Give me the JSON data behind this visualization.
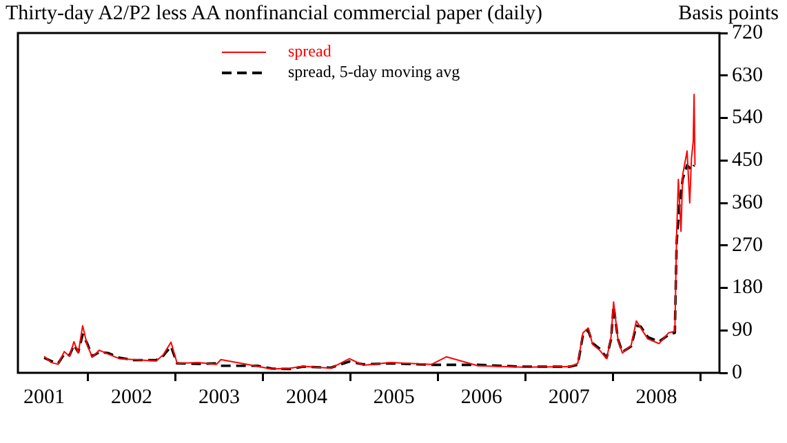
{
  "chart_data": {
    "type": "line",
    "title": "Thirty-day A2/P2 less AA nonfinancial commercial paper (daily)",
    "ylabel": "Basis points",
    "xlim": [
      2001.2,
      2009.22
    ],
    "xticks": [
      {
        "value": 2001.5,
        "label": "2001"
      },
      {
        "value": 2002,
        "label": null
      },
      {
        "value": 2002.5,
        "label": "2002"
      },
      {
        "value": 2003,
        "label": null
      },
      {
        "value": 2003.5,
        "label": "2003"
      },
      {
        "value": 2004,
        "label": null
      },
      {
        "value": 2004.5,
        "label": "2004"
      },
      {
        "value": 2005,
        "label": null
      },
      {
        "value": 2005.5,
        "label": "2005"
      },
      {
        "value": 2006,
        "label": null
      },
      {
        "value": 2006.5,
        "label": "2006"
      },
      {
        "value": 2007,
        "label": null
      },
      {
        "value": 2007.5,
        "label": "2007"
      },
      {
        "value": 2008,
        "label": null
      },
      {
        "value": 2008.5,
        "label": "2008"
      },
      {
        "value": 2009,
        "label": null
      }
    ],
    "ylim": [
      0,
      720
    ],
    "yticks": [
      0,
      90,
      180,
      270,
      360,
      450,
      540,
      630,
      720
    ],
    "grid": false,
    "legend": "top",
    "marker": "none",
    "series": [
      {
        "name": "spread",
        "color": "#ff0000",
        "line_style": "solid",
        "x": [
          2001.5,
          2001.58,
          2001.66,
          2001.73,
          2001.79,
          2001.84,
          2001.89,
          2001.94,
          2001.99,
          2002.05,
          2002.13,
          2002.23,
          2002.36,
          2002.52,
          2002.78,
          2002.86,
          2002.95,
          2003.02,
          2003.26,
          2003.47,
          2003.52,
          2003.94,
          2004.1,
          2004.31,
          2004.46,
          2004.78,
          2004.99,
          2005.15,
          2005.46,
          2005.93,
          2006.1,
          2006.46,
          2006.98,
          2007.51,
          2007.6,
          2007.66,
          2007.72,
          2007.77,
          2007.85,
          2007.93,
          2007.98,
          2008.01,
          2008.06,
          2008.11,
          2008.21,
          2008.27,
          2008.32,
          2008.4,
          2008.53,
          2008.64,
          2008.71,
          2008.73,
          2008.75,
          2008.78,
          2008.8,
          2008.85,
          2008.88,
          2008.9,
          2008.92,
          2008.93,
          2008.94
        ],
        "values": [
          35,
          22,
          18,
          45,
          35,
          66,
          42,
          100,
          60,
          33,
          48,
          40,
          30,
          28,
          25,
          38,
          65,
          20,
          22,
          18,
          28,
          14,
          8,
          10,
          14,
          10,
          30,
          16,
          22,
          18,
          34,
          15,
          12,
          13,
          20,
          85,
          95,
          60,
          48,
          30,
          75,
          150,
          70,
          42,
          58,
          110,
          95,
          72,
          62,
          85,
          88,
          290,
          410,
          300,
          420,
          470,
          360,
          455,
          490,
          590,
          440
        ]
      },
      {
        "name": "spread, 5-day moving avg",
        "color": "#000000",
        "line_style": "dashed",
        "x": [
          2001.5,
          2001.58,
          2001.66,
          2001.73,
          2001.79,
          2001.84,
          2001.89,
          2001.94,
          2001.99,
          2002.05,
          2002.13,
          2002.23,
          2002.36,
          2002.52,
          2002.78,
          2002.86,
          2002.95,
          2003.02,
          2003.26,
          2003.47,
          2003.52,
          2003.94,
          2004.1,
          2004.31,
          2004.46,
          2004.78,
          2004.99,
          2005.15,
          2005.46,
          2005.93,
          2006.46,
          2006.98,
          2007.51,
          2007.6,
          2007.66,
          2007.72,
          2007.77,
          2007.85,
          2007.93,
          2007.98,
          2008.01,
          2008.06,
          2008.11,
          2008.21,
          2008.27,
          2008.32,
          2008.4,
          2008.53,
          2008.64,
          2008.71,
          2008.73,
          2008.76,
          2008.8,
          2008.85,
          2008.9,
          2008.93
        ],
        "values": [
          32,
          25,
          20,
          40,
          37,
          59,
          44,
          81,
          63,
          35,
          44,
          42,
          32,
          27,
          27,
          36,
          56,
          20,
          19,
          20,
          15,
          15,
          9,
          8,
          13,
          11,
          24,
          18,
          20,
          17,
          17,
          13,
          13,
          17,
          81,
          90,
          63,
          51,
          32,
          71,
          141,
          71,
          44,
          56,
          100,
          98,
          76,
          66,
          81,
          85,
          275,
          352,
          411,
          440,
          430,
          440
        ]
      }
    ]
  }
}
